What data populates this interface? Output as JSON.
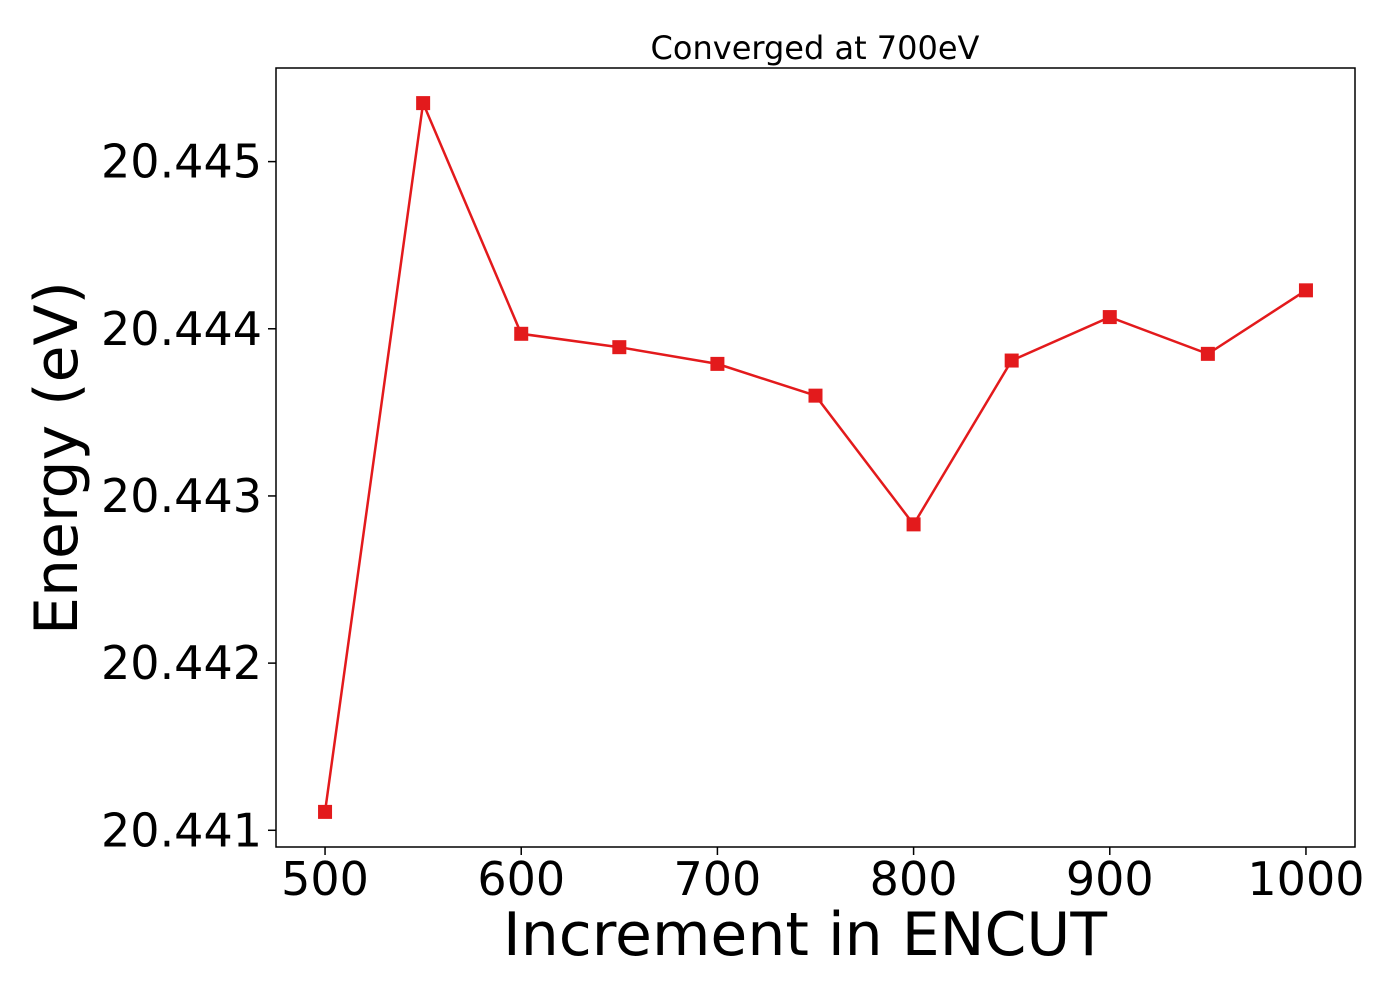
{
  "chart_data": {
    "type": "line",
    "title": "Converged at 700eV",
    "xlabel": "Increment in ENCUT",
    "ylabel": "Energy (eV)",
    "x": [
      500,
      550,
      600,
      650,
      700,
      750,
      800,
      850,
      900,
      950,
      1000
    ],
    "series": [
      {
        "values": [
          20.44111,
          20.44535,
          20.44397,
          20.44389,
          20.44379,
          20.4436,
          20.44283,
          20.44381,
          20.44407,
          20.44385,
          20.44423
        ],
        "color": "#e31a1c",
        "marker": "square"
      }
    ],
    "xlim": [
      475,
      1025
    ],
    "ylim": [
      20.4409,
      20.44556
    ],
    "xticks": [
      500,
      600,
      700,
      800,
      900,
      1000
    ],
    "xtick_labels": [
      "500",
      "600",
      "700",
      "800",
      "900",
      "1000"
    ],
    "yticks": [
      20.441,
      20.442,
      20.443,
      20.444,
      20.445
    ],
    "ytick_labels": [
      "20.441",
      "20.442",
      "20.443",
      "20.444",
      "20.445"
    ],
    "grid": false,
    "legend": "none"
  }
}
